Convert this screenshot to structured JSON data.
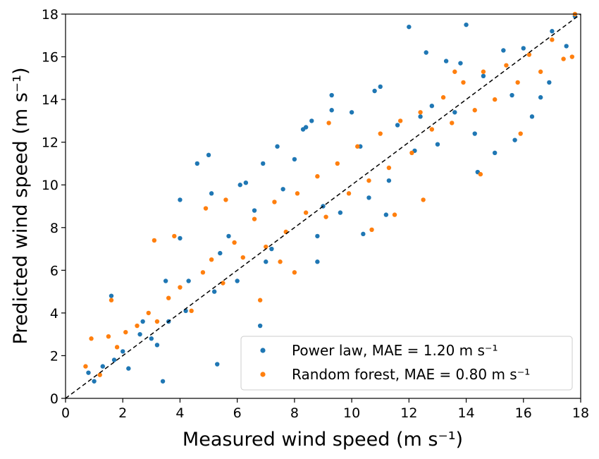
{
  "chart_data": {
    "type": "scatter",
    "title": "",
    "xlabel": "Measured wind speed (m s⁻¹)",
    "ylabel": "Predicted wind speed (m s⁻¹)",
    "xlim": [
      0,
      18
    ],
    "ylim": [
      0,
      18
    ],
    "xticks": [
      0,
      2,
      4,
      6,
      8,
      10,
      12,
      14,
      16,
      18
    ],
    "yticks": [
      0,
      2,
      4,
      6,
      8,
      10,
      12,
      14,
      16,
      18
    ],
    "grid": false,
    "legend_position": "lower-right",
    "reference_line": {
      "style": "dashed",
      "color": "#000000",
      "from": [
        0,
        0
      ],
      "to": [
        18,
        18
      ]
    },
    "series": [
      {
        "name": "Power law, MAE = 1.20 m s⁻¹",
        "color": "#1f77b4",
        "mae": 1.2,
        "x": [
          0.8,
          1.0,
          1.3,
          1.6,
          1.7,
          2.0,
          2.2,
          2.6,
          3.0,
          3.4,
          3.5,
          3.6,
          4.0,
          4.2,
          4.6,
          5.0,
          5.2,
          5.4,
          5.7,
          6.0,
          6.3,
          6.6,
          6.8,
          7.0,
          7.2,
          7.6,
          8.0,
          8.3,
          8.6,
          8.8,
          9.0,
          9.3,
          9.6,
          10.0,
          10.3,
          10.6,
          11.0,
          11.3,
          11.6,
          12.0,
          12.2,
          12.4,
          12.8,
          13.0,
          13.3,
          13.6,
          14.0,
          14.3,
          14.6,
          15.0,
          15.3,
          15.6,
          16.0,
          16.3,
          16.6,
          17.0,
          17.5,
          17.8,
          5.3,
          2.7,
          3.2,
          4.3,
          5.1,
          6.1,
          7.4,
          8.4,
          9.3,
          10.4,
          11.2,
          12.6,
          13.8,
          14.4,
          15.7,
          16.9,
          4.0,
          6.9,
          8.8,
          10.8
        ],
        "y": [
          1.2,
          0.8,
          1.5,
          4.8,
          1.8,
          2.2,
          1.4,
          3.0,
          2.8,
          0.8,
          5.5,
          3.6,
          9.3,
          4.1,
          11.0,
          11.4,
          5.0,
          6.8,
          7.6,
          5.5,
          10.1,
          8.8,
          3.4,
          6.4,
          7.0,
          9.8,
          11.2,
          12.6,
          13.0,
          7.6,
          9.0,
          14.2,
          8.7,
          13.4,
          11.8,
          9.4,
          14.6,
          10.2,
          12.8,
          17.4,
          11.6,
          13.2,
          13.7,
          11.9,
          15.8,
          13.4,
          17.5,
          12.4,
          15.1,
          11.5,
          16.3,
          14.2,
          16.4,
          13.2,
          14.1,
          17.2,
          16.5,
          17.9,
          1.6,
          3.6,
          2.5,
          5.5,
          9.6,
          10.0,
          11.8,
          12.7,
          13.5,
          7.7,
          8.6,
          16.2,
          15.7,
          10.6,
          12.1,
          14.8,
          7.5,
          11.0,
          6.4,
          14.4
        ]
      },
      {
        "name": "Random forest, MAE = 0.80 m s⁻¹",
        "color": "#ff7f0e",
        "mae": 0.8,
        "x": [
          0.7,
          0.9,
          1.2,
          1.5,
          1.8,
          2.1,
          2.5,
          2.9,
          3.2,
          3.6,
          4.0,
          4.4,
          4.8,
          5.1,
          5.5,
          5.9,
          6.2,
          6.6,
          7.0,
          7.3,
          7.7,
          8.1,
          8.4,
          8.8,
          9.1,
          9.5,
          9.9,
          10.2,
          10.6,
          11.0,
          11.3,
          11.7,
          12.1,
          12.4,
          12.8,
          13.2,
          13.5,
          13.9,
          14.3,
          14.6,
          15.0,
          15.4,
          15.8,
          16.2,
          16.6,
          17.0,
          17.4,
          17.8,
          1.6,
          3.1,
          4.9,
          6.8,
          7.5,
          9.2,
          10.7,
          12.5,
          13.6,
          14.5,
          15.9,
          17.7,
          3.8,
          5.6,
          8.0,
          11.5
        ],
        "y": [
          1.5,
          2.8,
          1.1,
          2.9,
          2.4,
          3.1,
          3.4,
          4.0,
          3.6,
          4.7,
          5.2,
          4.1,
          5.9,
          6.5,
          5.4,
          7.3,
          6.6,
          8.4,
          7.1,
          9.2,
          7.8,
          9.6,
          8.7,
          10.4,
          8.5,
          11.0,
          9.6,
          11.8,
          10.2,
          12.4,
          10.8,
          13.0,
          11.5,
          13.4,
          12.6,
          14.1,
          12.9,
          14.8,
          13.5,
          15.3,
          14.0,
          15.6,
          14.8,
          16.1,
          15.3,
          16.8,
          15.9,
          18.0,
          4.6,
          7.4,
          8.9,
          4.6,
          6.4,
          12.9,
          7.9,
          9.3,
          15.3,
          10.5,
          12.4,
          16.0,
          7.6,
          9.3,
          5.9,
          8.6
        ]
      }
    ]
  }
}
